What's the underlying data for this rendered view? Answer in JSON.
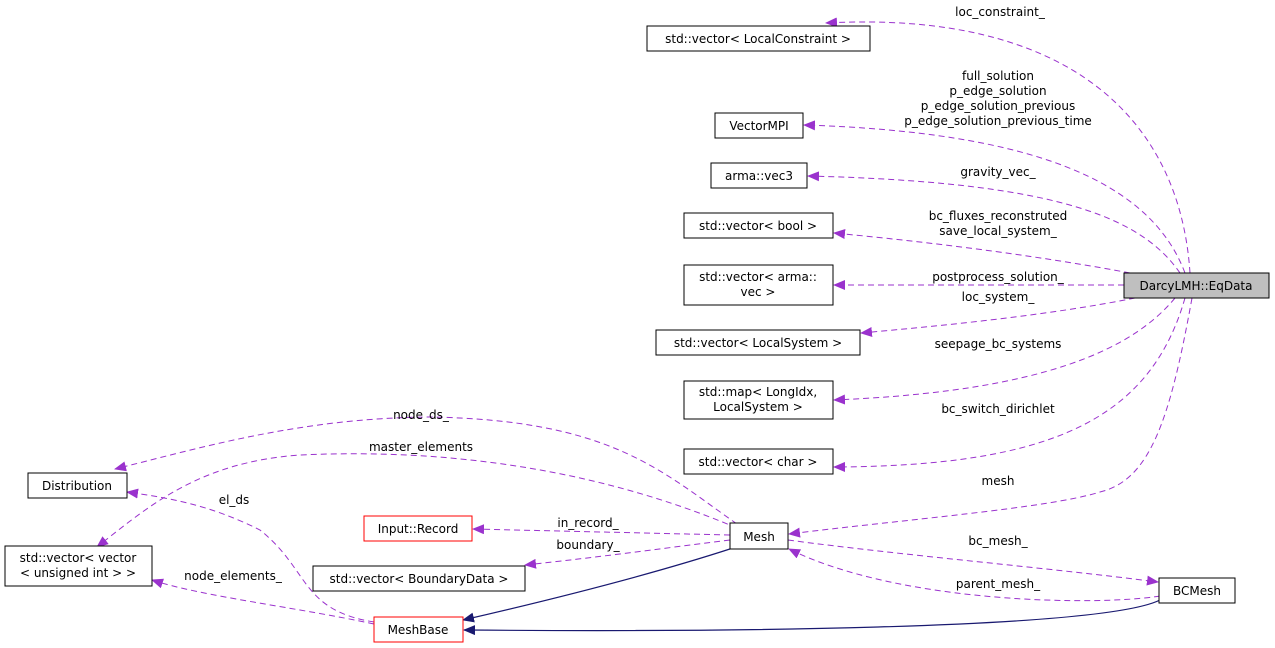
{
  "nodes": {
    "eqdata": {
      "label": "DarcyLMH::EqData"
    },
    "loc_constraint_vec": {
      "label": "std::vector< LocalConstraint >"
    },
    "vectormpi": {
      "label": "VectorMPI"
    },
    "vec3": {
      "label": "arma::vec3"
    },
    "vector_bool": {
      "label": "std::vector< bool >"
    },
    "vector_arma_vec": {
      "line1": "std::vector< arma::",
      "line2": "vec >"
    },
    "vector_localsystem": {
      "label": "std::vector< LocalSystem >"
    },
    "map_localsystem": {
      "line1": "std::map< LongIdx,",
      "line2": "LocalSystem >"
    },
    "vector_char": {
      "label": "std::vector< char >"
    },
    "distribution": {
      "label": "Distribution"
    },
    "vector_vector_uint": {
      "line1": "std::vector< vector",
      "line2": "< unsigned int > >"
    },
    "input_record": {
      "label": "Input::Record"
    },
    "vector_boundarydata": {
      "label": "std::vector< BoundaryData >"
    },
    "mesh": {
      "label": "Mesh"
    },
    "meshbase": {
      "label": "MeshBase"
    },
    "bcmesh": {
      "label": "BCMesh"
    }
  },
  "edges": {
    "loc_constraint": "loc_constraint_",
    "vectormpi": [
      "full_solution",
      "p_edge_solution",
      "p_edge_solution_previous",
      "p_edge_solution_previous_time"
    ],
    "gravity": "gravity_vec_",
    "bool": [
      "bc_fluxes_reconstruted",
      "save_local_system_"
    ],
    "postprocess": "postprocess_solution_",
    "loc_system": "loc_system_",
    "seepage": "seepage_bc_systems",
    "bc_switch": "bc_switch_dirichlet",
    "mesh": "mesh",
    "node_ds": "node_ds_",
    "master_elements": "master_elements",
    "el_ds": "el_ds",
    "in_record": "in_record_",
    "boundary": "boundary_",
    "node_elements": "node_elements_",
    "bc_mesh": "bc_mesh_",
    "parent_mesh": "parent_mesh_"
  },
  "colors": {
    "member_edge": "#9a32cd",
    "inheritance_edge": "#191970",
    "undocumented_border": "#ff0000",
    "focus_fill": "#bfbfbf"
  }
}
